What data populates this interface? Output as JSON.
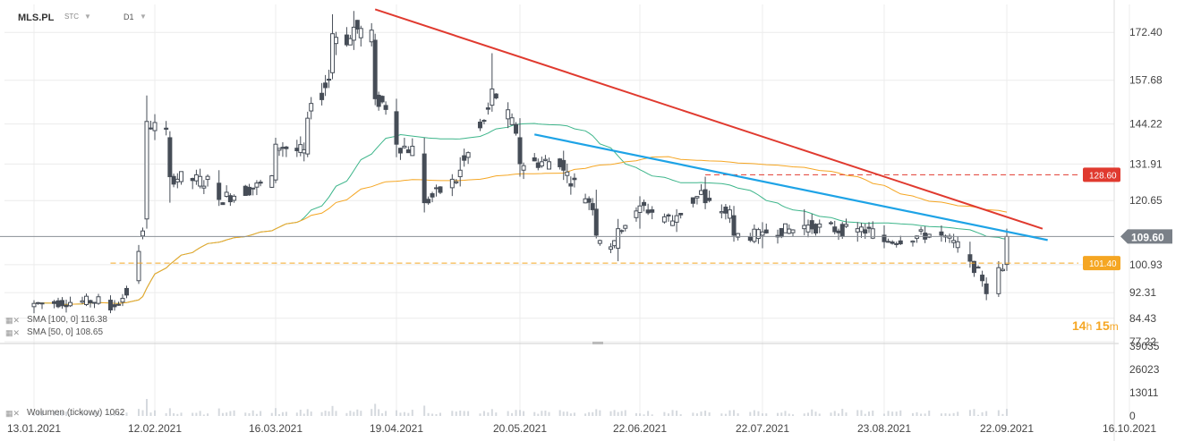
{
  "header": {
    "symbol": "MLS.PL",
    "type": "STC",
    "timeframe": "D1"
  },
  "legends": {
    "sma100": "SMA [100,  0] 116.38",
    "sma50": "SMA [50,  0] 108.65",
    "volume": "Wolumen  (tickowy) 1062"
  },
  "timer": {
    "hours": "14",
    "h": "h",
    "minutes": "15",
    "m": "m"
  },
  "colors": {
    "up": "#ffffff",
    "down": "#464d57",
    "sma50": "#3cb58a",
    "sma100": "#f5a623",
    "red_line": "#e03a2f",
    "blue_line": "#1ea3e6",
    "orange_level": "#f5a623",
    "red_level": "#e03a2f"
  },
  "chart_data": {
    "type": "candlestick",
    "ylim": [
      77.22,
      181.0
    ],
    "y_ticks": [
      "172.40",
      "157.68",
      "144.22",
      "131.91",
      "120.65",
      "100.93",
      "92.31",
      "84.43",
      "77.22"
    ],
    "y_tick_values": [
      172.4,
      157.68,
      144.22,
      131.91,
      120.65,
      100.93,
      92.31,
      84.43,
      77.22
    ],
    "x_ticks": [
      "13.01.2021",
      "12.02.2021",
      "16.03.2021",
      "19.04.2021",
      "20.05.2021",
      "22.06.2021",
      "22.07.2021",
      "23.08.2021",
      "22.09.2021",
      "16.10.2021"
    ],
    "current_price": "109.60",
    "levels": [
      {
        "name": "128.60",
        "value": 128.6,
        "color": "red"
      },
      {
        "name": "101.40",
        "value": 101.4,
        "color": "orange"
      }
    ],
    "volume_ticks": [
      "39035",
      "26023",
      "13011",
      "0"
    ],
    "volume_ylim": [
      0,
      39035
    ],
    "ohlc_anchors": [
      [
        "13.01.2021",
        88.0,
        90.0,
        86.0,
        89.0
      ],
      [
        "01.02.2021",
        90.0,
        91.5,
        86.0,
        87.0
      ],
      [
        "08.02.2021",
        96.0,
        107.0,
        95.0,
        105.0
      ],
      [
        "10.02.2021",
        115.0,
        153.0,
        112.0,
        145.0
      ],
      [
        "16.02.2021",
        140.0,
        142.0,
        120.0,
        128.0
      ],
      [
        "01.03.2021",
        126.0,
        130.0,
        119.0,
        121.0
      ],
      [
        "16.03.2021",
        127.0,
        140.0,
        126.0,
        138.0
      ],
      [
        "25.03.2021",
        135.0,
        148.0,
        134.0,
        146.0
      ],
      [
        "01.04.2021",
        160.0,
        178.0,
        158.0,
        172.0
      ],
      [
        "07.04.2021",
        170.0,
        179.0,
        167.0,
        174.0
      ],
      [
        "13.04.2021",
        170.0,
        172.0,
        150.0,
        152.0
      ],
      [
        "19.04.2021",
        148.0,
        152.0,
        134.0,
        138.0
      ],
      [
        "26.04.2021",
        135.0,
        140.0,
        117.0,
        120.0
      ],
      [
        "05.05.2021",
        128.0,
        134.0,
        125.0,
        130.0
      ],
      [
        "13.05.2021",
        150.0,
        166.0,
        148.0,
        155.0
      ],
      [
        "20.05.2021",
        140.0,
        146.0,
        128.0,
        132.0
      ],
      [
        "01.06.2021",
        133.0,
        136.0,
        127.0,
        130.0
      ],
      [
        "10.06.2021",
        118.0,
        124.0,
        109.0,
        110.0
      ],
      [
        "16.06.2021",
        106.0,
        115.0,
        102.0,
        112.0
      ],
      [
        "22.06.2021",
        117.0,
        122.0,
        112.0,
        119.0
      ],
      [
        "01.07.2021",
        114.0,
        118.0,
        111.0,
        116.0
      ],
      [
        "08.07.2021",
        124.0,
        128.0,
        118.0,
        120.0
      ],
      [
        "15.07.2021",
        116.0,
        119.0,
        108.0,
        110.0
      ],
      [
        "22.07.2021",
        110.0,
        114.0,
        106.0,
        111.0
      ],
      [
        "02.08.2021",
        112.0,
        118.0,
        110.0,
        113.0
      ],
      [
        "16.08.2021",
        111.0,
        114.0,
        108.0,
        112.0
      ],
      [
        "23.08.2021",
        110.0,
        113.0,
        106.0,
        108.0
      ],
      [
        "06.09.2021",
        111.0,
        113.0,
        108.0,
        110.0
      ],
      [
        "13.09.2021",
        104.0,
        108.0,
        100.0,
        102.0
      ],
      [
        "17.09.2021",
        95.0,
        97.0,
        90.0,
        92.0
      ],
      [
        "20.09.2021",
        92.0,
        102.0,
        91.0,
        100.0
      ],
      [
        "22.09.2021",
        101.0,
        112.0,
        99.0,
        109.6
      ]
    ]
  }
}
